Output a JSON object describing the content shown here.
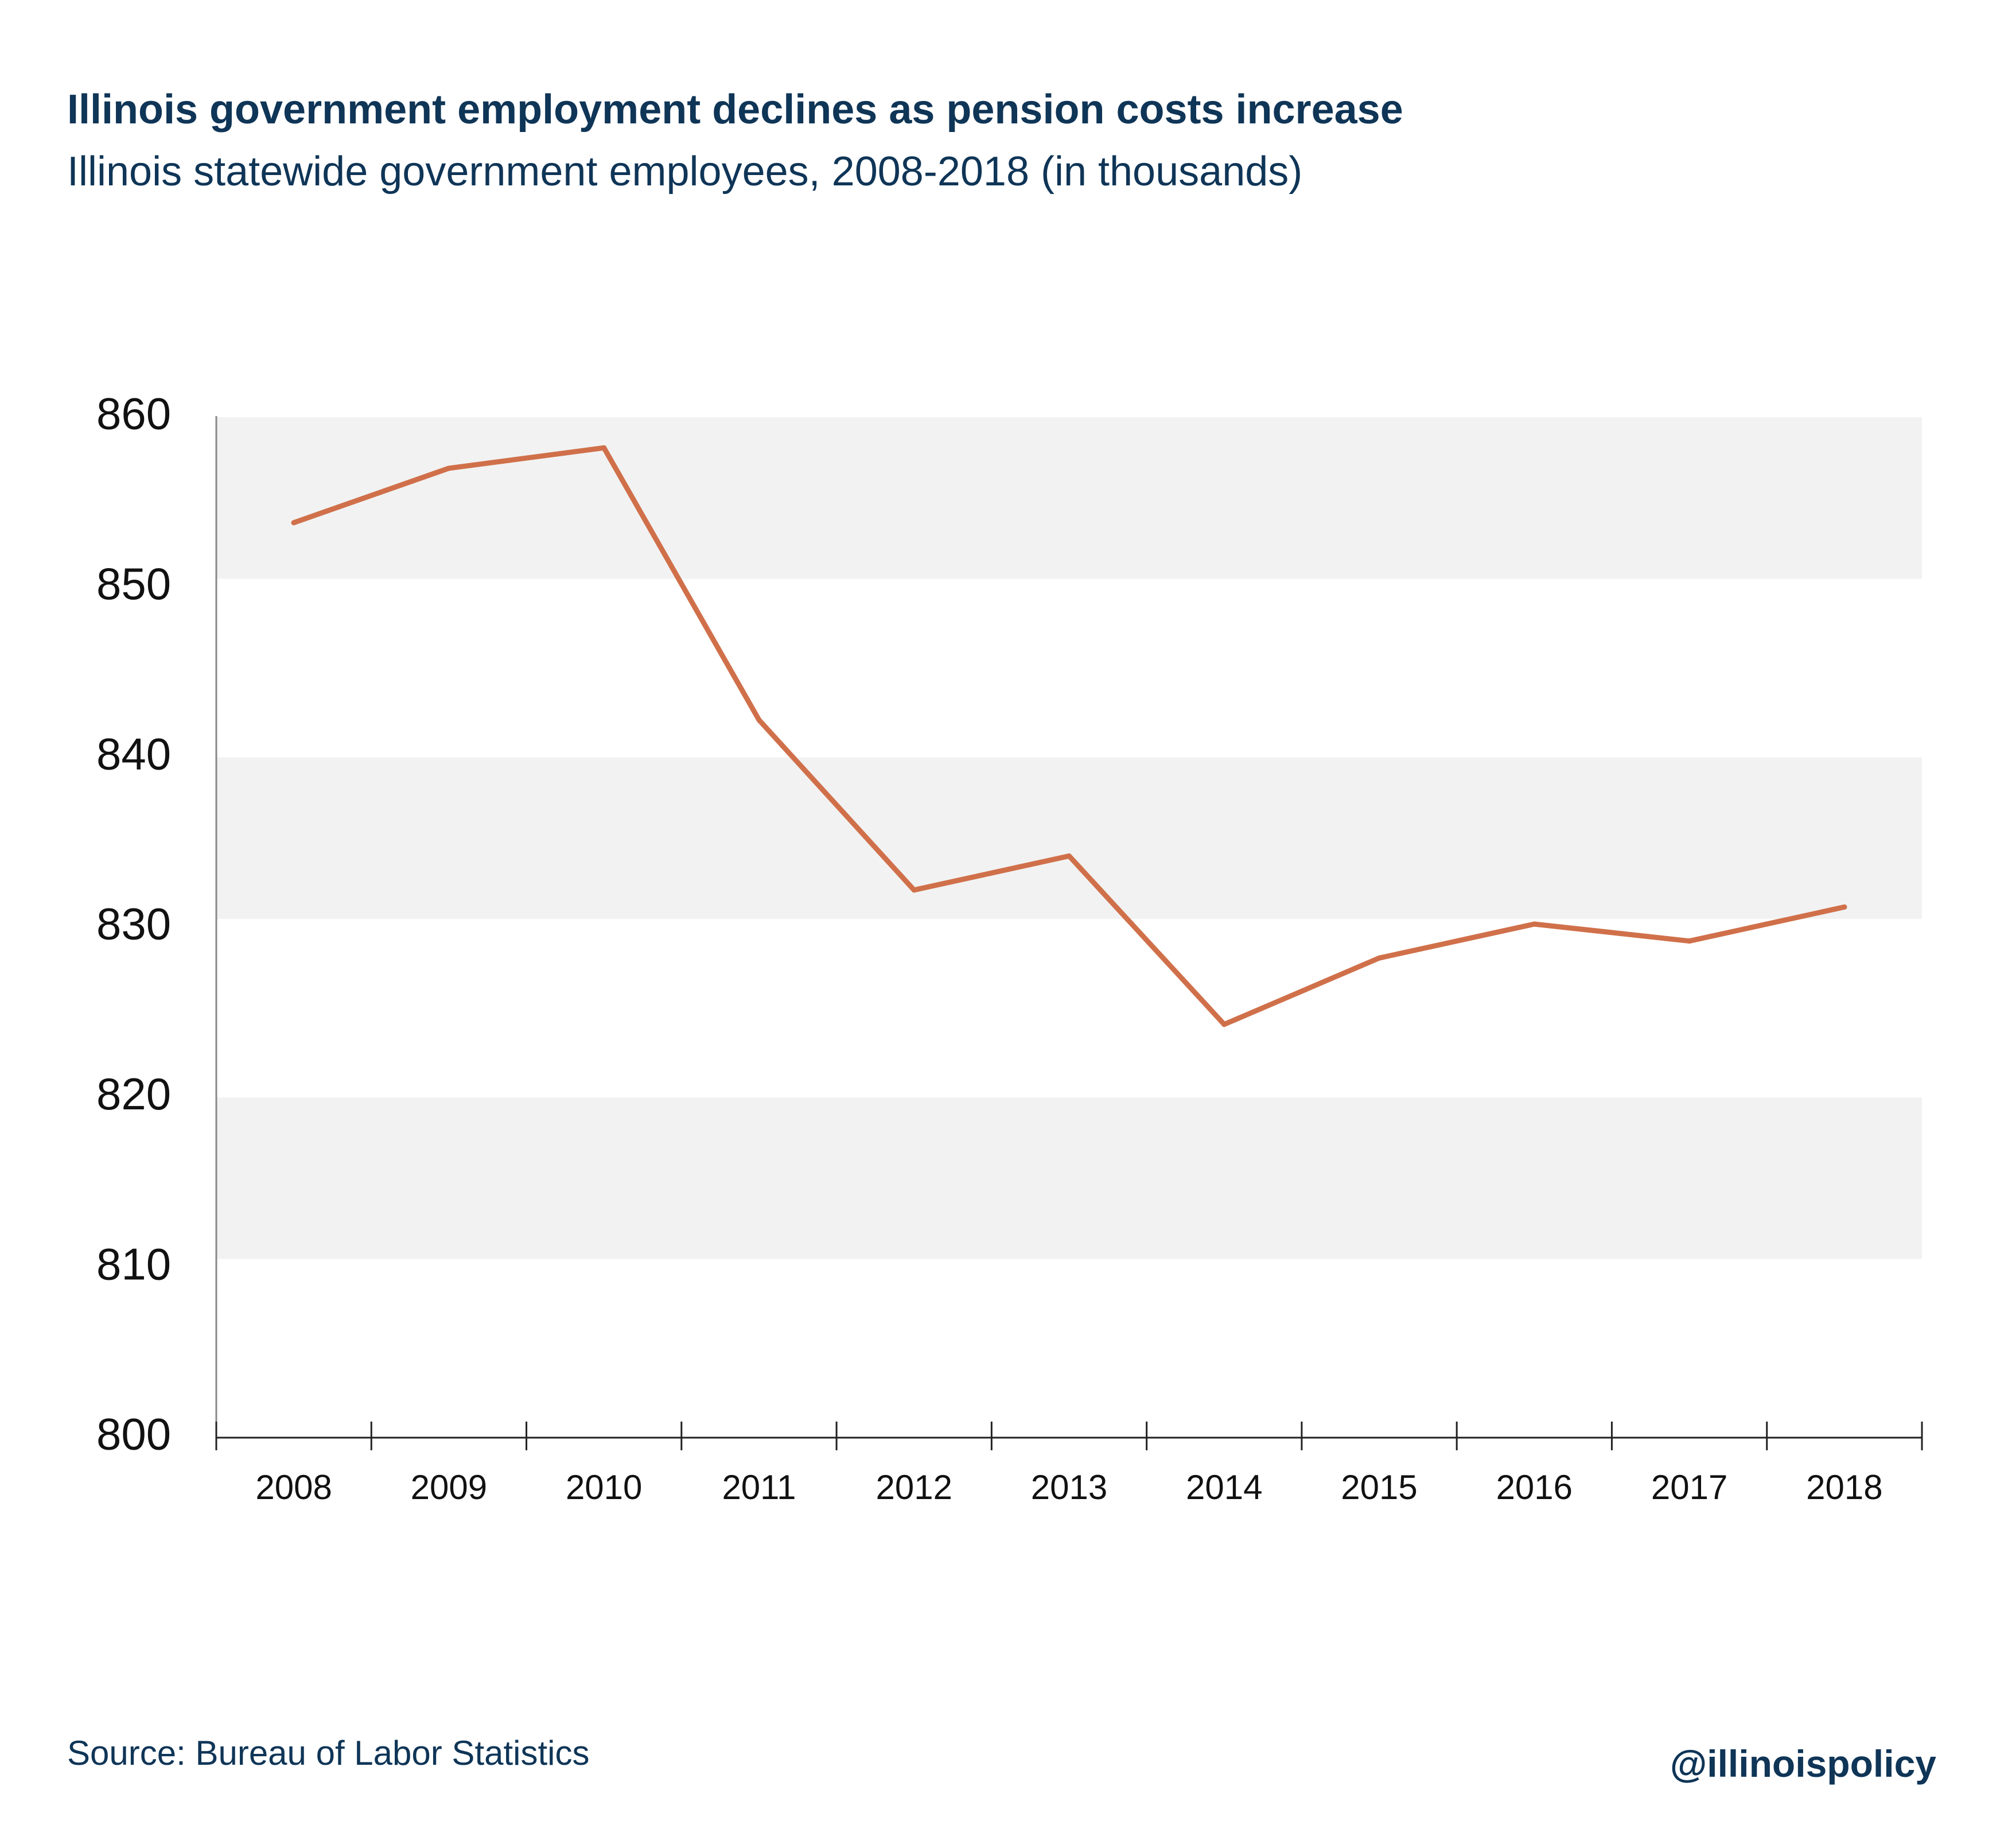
{
  "title": "Illinois government employment declines as pension costs increase",
  "subtitle": "Illinois statewide government employees, 2008-2018 (in thousands)",
  "source": "Source:  Bureau of Labor Statistics",
  "handle": "@illinoispolicy",
  "colors": {
    "line": "#d0704a",
    "band": "#f2f2f2",
    "text": "#0f3557",
    "axis": "#222222"
  },
  "chart_data": {
    "type": "line",
    "x": [
      "2008",
      "2009",
      "2010",
      "2011",
      "2012",
      "2013",
      "2014",
      "2015",
      "2016",
      "2017",
      "2018"
    ],
    "series": [
      {
        "values": [
          853.8,
          857.0,
          858.2,
          842.2,
          832.2,
          834.2,
          824.3,
          828.2,
          830.2,
          829.2,
          831.2
        ]
      }
    ],
    "ylim": [
      800,
      860
    ],
    "yticks": [
      800,
      810,
      820,
      830,
      840,
      850,
      860
    ],
    "bands": [
      [
        850.5,
        860
      ],
      [
        830.5,
        840
      ],
      [
        810.5,
        820
      ]
    ],
    "title": "Illinois government employment declines as pension costs increase",
    "xlabel": "",
    "ylabel": ""
  }
}
